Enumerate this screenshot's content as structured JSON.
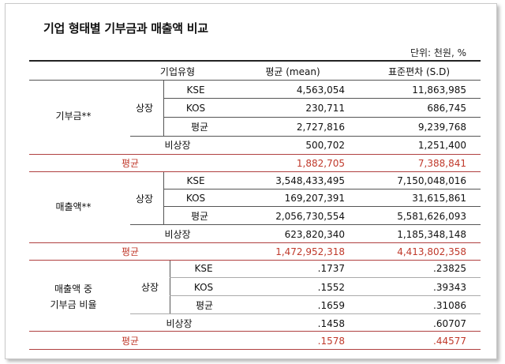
{
  "title": "기업 형태별 기부금과 매출액 비교",
  "unit": "단위: 천원, %",
  "headers": {
    "type": "기업유형",
    "mean": "평균 (mean)",
    "sd": "표준편차 (S.D)"
  },
  "labels": {
    "listed": "상장",
    "unlisted": "비상장",
    "avg": "평균",
    "kse": "KSE",
    "kos": "KOS"
  },
  "groups": [
    {
      "name": "기부금**",
      "rows": {
        "kse": [
          "4,563,054",
          "11,863,985"
        ],
        "kos": [
          "230,711",
          "686,745"
        ],
        "listed_avg": [
          "2,727,816",
          "9,239,768"
        ],
        "unlisted": [
          "500,702",
          "1,251,400"
        ],
        "total": [
          "1,882,705",
          "7,388,841"
        ]
      }
    },
    {
      "name": "매출액**",
      "rows": {
        "kse": [
          "3,548,433,495",
          "7,150,048,016"
        ],
        "kos": [
          "169,207,391",
          "31,615,861"
        ],
        "listed_avg": [
          "2,056,730,554",
          "5,581,626,093"
        ],
        "unlisted": [
          "623,820,340",
          "1,185,348,148"
        ],
        "total": [
          "1,472,952,318",
          "4,413,802,358"
        ]
      }
    },
    {
      "name_line1": "매출액 중",
      "name_line2": "기부금 비율",
      "rows": {
        "kse": [
          ".1737",
          ".23825"
        ],
        "kos": [
          ".1552",
          ".39343"
        ],
        "listed_avg": [
          ".1659",
          ".31086"
        ],
        "unlisted": [
          ".1458",
          ".60707"
        ],
        "total": [
          ".1578",
          ".44577"
        ]
      }
    }
  ],
  "colors": {
    "highlight": "#c0392b"
  }
}
